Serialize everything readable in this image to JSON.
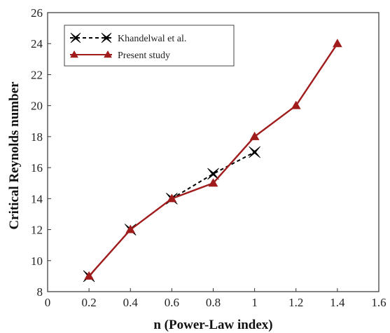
{
  "chart_data": {
    "type": "line",
    "xlabel": "n (Power-Law index)",
    "ylabel": "Critical Reynolds number",
    "xlim": [
      0,
      1.6
    ],
    "ylim": [
      8,
      26
    ],
    "xticks": [
      0,
      0.2,
      0.4,
      0.6,
      0.8,
      1,
      1.2,
      1.4,
      1.6
    ],
    "xtick_labels": [
      "0",
      "0.2",
      "0.4",
      "0.6",
      "0.8",
      "1",
      "1.2",
      "1.4",
      "1.6"
    ],
    "yticks": [
      8,
      10,
      12,
      14,
      16,
      18,
      20,
      22,
      24,
      26
    ],
    "ytick_labels": [
      "8",
      "10",
      "12",
      "14",
      "16",
      "18",
      "20",
      "22",
      "24",
      "26"
    ],
    "grid": false,
    "legend_position": "top-left",
    "series": [
      {
        "name": "Khandelwal et al.",
        "color": "#000000",
        "line_style": "dashed",
        "marker": "four-point-star",
        "x": [
          0.2,
          0.4,
          0.6,
          0.8,
          1.0
        ],
        "y": [
          9,
          12,
          14,
          15.6,
          17
        ]
      },
      {
        "name": "Present study",
        "color": "#a01c1c",
        "line_style": "solid",
        "marker": "triangle",
        "x": [
          0.2,
          0.4,
          0.6,
          0.8,
          1.0,
          1.2,
          1.4
        ],
        "y": [
          9,
          12,
          14,
          15,
          18,
          20,
          24
        ]
      }
    ]
  }
}
